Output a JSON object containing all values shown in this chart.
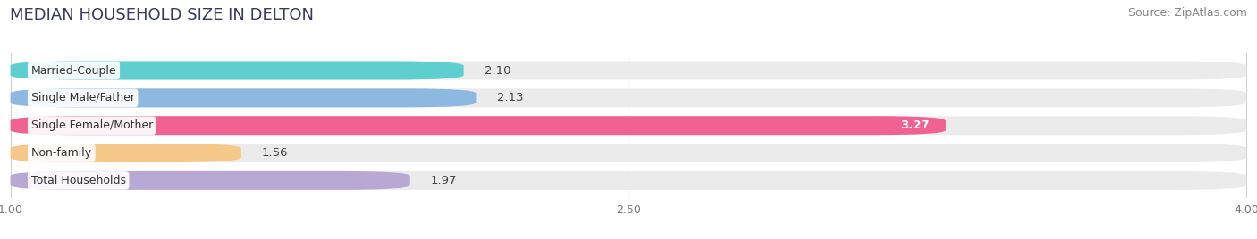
{
  "title": "MEDIAN HOUSEHOLD SIZE IN DELTON",
  "source": "Source: ZipAtlas.com",
  "categories": [
    "Married-Couple",
    "Single Male/Father",
    "Single Female/Mother",
    "Non-family",
    "Total Households"
  ],
  "values": [
    2.1,
    2.13,
    3.27,
    1.56,
    1.97
  ],
  "bar_colors": [
    "#5ecece",
    "#8db8e0",
    "#f06292",
    "#f5c98a",
    "#b8a8d4"
  ],
  "value_label_colors": [
    "#555555",
    "#555555",
    "#ffffff",
    "#555555",
    "#555555"
  ],
  "xlim_min": 1.0,
  "xlim_max": 4.0,
  "xticks": [
    1.0,
    2.5,
    4.0
  ],
  "xtick_labels": [
    "1.00",
    "2.50",
    "4.00"
  ],
  "background_color": "#ffffff",
  "bar_bg_color": "#ebebeb",
  "title_fontsize": 13,
  "source_fontsize": 9,
  "value_label_fontsize": 9.5,
  "cat_label_fontsize": 9,
  "bar_height": 0.68,
  "bar_gap": 0.32
}
